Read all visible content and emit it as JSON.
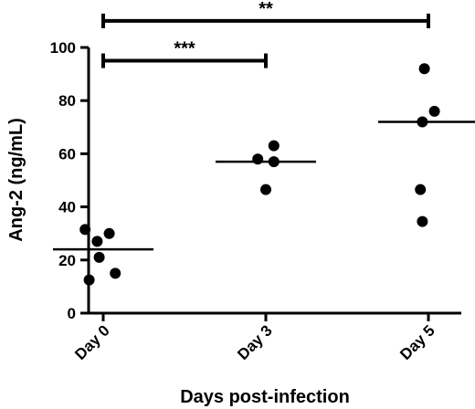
{
  "chart_data": {
    "type": "scatter",
    "xlabel": "Days post-infection",
    "ylabel": "Ang-2 (ng/mL)",
    "ylim": [
      0,
      100
    ],
    "yticks": [
      0,
      20,
      40,
      60,
      80,
      100
    ],
    "categories": [
      "Day 0",
      "Day 3",
      "Day 5"
    ],
    "groups": [
      {
        "category": "Day 0",
        "median": 24,
        "points": [
          {
            "offset": -0.45,
            "y": 31.5
          },
          {
            "offset": 0.15,
            "y": 30
          },
          {
            "offset": -0.15,
            "y": 27
          },
          {
            "offset": -0.1,
            "y": 21
          },
          {
            "offset": 0.3,
            "y": 15
          },
          {
            "offset": -0.35,
            "y": 12.5
          }
        ]
      },
      {
        "category": "Day 3",
        "median": 57,
        "points": [
          {
            "offset": 0.2,
            "y": 63
          },
          {
            "offset": -0.2,
            "y": 58
          },
          {
            "offset": 0.2,
            "y": 57
          },
          {
            "offset": 0.0,
            "y": 46.5
          }
        ]
      },
      {
        "category": "Day 5",
        "median": 72,
        "points": [
          {
            "offset": -0.1,
            "y": 92
          },
          {
            "offset": 0.15,
            "y": 76
          },
          {
            "offset": -0.15,
            "y": 72
          },
          {
            "offset": -0.2,
            "y": 46.5
          },
          {
            "offset": -0.15,
            "y": 34.5
          }
        ]
      }
    ],
    "significance": [
      {
        "from": "Day 0",
        "to": "Day 3",
        "y": 95,
        "label": "***"
      },
      {
        "from": "Day 0",
        "to": "Day 5",
        "y": 110,
        "label": "**"
      }
    ]
  }
}
